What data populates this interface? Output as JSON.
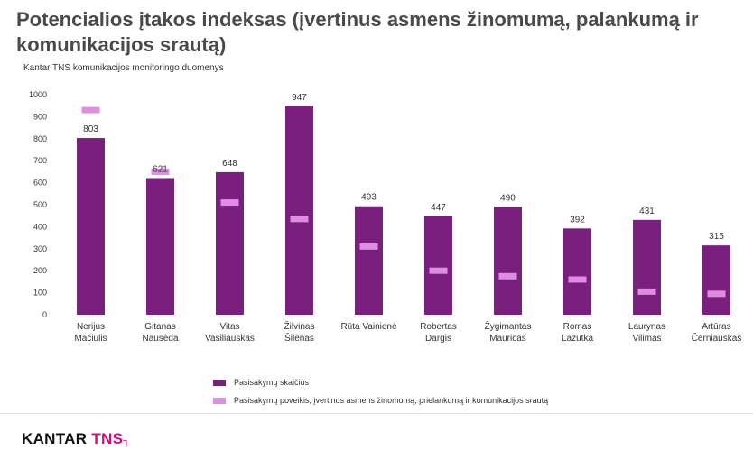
{
  "header": {
    "title": "Potencialios įtakos indeksas (įvertinus asmens žinomumą, palankumą ir komunikacijos srautą)",
    "subtitle": "Kantar TNS komunikacijos monitoringo duomenys"
  },
  "colors": {
    "bar": "#7b1f7e",
    "marker": "#dd8ee3",
    "axis_text": "#333333"
  },
  "chart_data": {
    "type": "bar",
    "categories": [
      [
        "Nerijus",
        "Mačiulis"
      ],
      [
        "Gitanas",
        "Nausėda"
      ],
      [
        "Vitas",
        "Vasiliauskas"
      ],
      [
        "Žilvinas",
        "Šilėnas"
      ],
      [
        "Rūta Vainienė"
      ],
      [
        "Robertas",
        "Dargis"
      ],
      [
        "Žygimantas",
        "Mauricas"
      ],
      [
        "Romas",
        "Lazutka"
      ],
      [
        "Laurynas",
        "Vilimas"
      ],
      [
        "Artūras",
        "Černiauskas"
      ]
    ],
    "series": [
      {
        "name": "Pasisakymų skaičius",
        "kind": "bar",
        "values": [
          803,
          621,
          648,
          947,
          493,
          447,
          490,
          392,
          431,
          315
        ],
        "labels": [
          "803",
          "621",
          "648",
          "947",
          "493",
          "447",
          "490",
          "392",
          "431",
          "315"
        ]
      },
      {
        "name": "Pasisakymų poveikis, įvertinus asmens žinomumą, prielankumą ir  komunikacijos srautą",
        "kind": "marker",
        "values": [
          930,
          650,
          510,
          435,
          310,
          200,
          175,
          160,
          105,
          95
        ]
      }
    ],
    "y_ticks": [
      "0",
      "100",
      "200",
      "300",
      "400",
      "500",
      "600",
      "700",
      "800",
      "900",
      "1000"
    ],
    "ylim": [
      0,
      1000
    ],
    "grid": false,
    "legend_position": "bottom"
  },
  "brand": {
    "kantar": "KANTAR",
    "tns": "TNS",
    "mark": "┐"
  }
}
